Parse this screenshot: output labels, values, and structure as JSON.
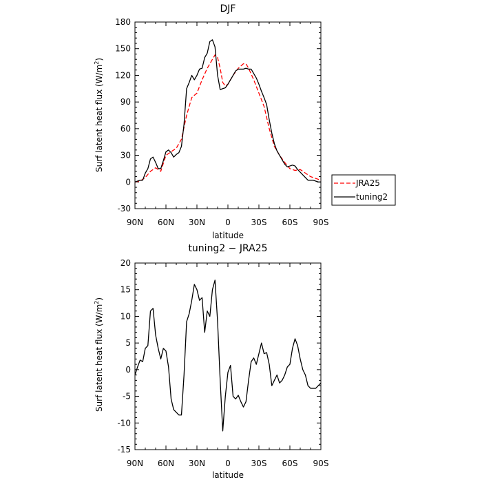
{
  "chart_data": [
    {
      "type": "line",
      "title": "DJF",
      "xlabel": "latitude",
      "ylabel": "Surf latent heat flux (W/m²)",
      "xlim": [
        90,
        -90
      ],
      "ylim": [
        -30,
        180
      ],
      "yticks": [
        -30,
        0,
        30,
        60,
        90,
        120,
        150,
        180
      ],
      "xticks": [
        90,
        60,
        30,
        0,
        -30,
        -60,
        -90
      ],
      "xtick_labels": [
        "90N",
        "60N",
        "30N",
        "0",
        "30S",
        "60S",
        "90S"
      ],
      "legend_position": "right",
      "series": [
        {
          "name": "JRA25",
          "color": "#ff0000",
          "dash": "dashed",
          "x": [
            90,
            85,
            80,
            75,
            70,
            65,
            60,
            55,
            50,
            45,
            40,
            35,
            30,
            25,
            20,
            15,
            12.5,
            10,
            7.5,
            5,
            2.5,
            0,
            -5,
            -10,
            -15,
            -17.5,
            -20,
            -25,
            -30,
            -35,
            -40,
            -45,
            -50,
            -55,
            -60,
            -65,
            -70,
            -75,
            -80,
            -85,
            -90
          ],
          "y": [
            0,
            1,
            5,
            12,
            16,
            12,
            30,
            34,
            38,
            48,
            75,
            95,
            100,
            115,
            128,
            138,
            143,
            140,
            128,
            112,
            108,
            110,
            120,
            128,
            133,
            133,
            128,
            115,
            100,
            85,
            60,
            40,
            30,
            22,
            15,
            13,
            14,
            10,
            6,
            4,
            2
          ]
        },
        {
          "name": "tuning2",
          "color": "#000000",
          "dash": "solid",
          "x": [
            90,
            87.5,
            85,
            82.5,
            80,
            77.5,
            75,
            72.5,
            70,
            67.5,
            65,
            62.5,
            60,
            57.5,
            55,
            52.5,
            50,
            47.5,
            45,
            42.5,
            40,
            37.5,
            35,
            32.5,
            30,
            27.5,
            25,
            22.5,
            20,
            17.5,
            15,
            12.5,
            10,
            7.5,
            5,
            2.5,
            0,
            -2.5,
            -5,
            -7.5,
            -10,
            -12.5,
            -15,
            -17.5,
            -20,
            -22.5,
            -25,
            -27.5,
            -30,
            -32.5,
            -35,
            -37.5,
            -40,
            -42.5,
            -45,
            -47.5,
            -50,
            -52.5,
            -55,
            -57.5,
            -60,
            -62.5,
            -65,
            -67.5,
            -70,
            -72.5,
            -75,
            -77.5,
            -80,
            -82.5,
            -85,
            -87.5,
            -90
          ],
          "y": [
            0,
            1,
            2,
            2,
            10,
            15,
            26,
            28,
            22,
            15,
            15,
            24,
            34,
            36,
            33,
            28,
            31,
            33,
            40,
            65,
            105,
            112,
            120,
            115,
            120,
            127,
            128,
            140,
            145,
            158,
            160,
            152,
            120,
            104,
            105,
            106,
            110,
            115,
            120,
            125,
            127,
            127,
            127,
            128,
            127,
            127,
            122,
            117,
            110,
            102,
            95,
            87,
            70,
            55,
            43,
            35,
            30,
            25,
            20,
            17,
            18,
            19,
            18,
            14,
            11,
            8,
            5,
            2,
            2,
            2,
            1,
            0,
            0
          ]
        }
      ]
    },
    {
      "type": "line",
      "title": "tuning2 − JRA25",
      "xlabel": "latitude",
      "ylabel": "Surf latent heat flux (W/m²)",
      "xlim": [
        90,
        -90
      ],
      "ylim": [
        -15,
        20
      ],
      "yticks": [
        -15,
        -10,
        -5,
        0,
        5,
        10,
        15,
        20
      ],
      "xticks": [
        90,
        60,
        30,
        0,
        -30,
        -60,
        -90
      ],
      "xtick_labels": [
        "90N",
        "60N",
        "30N",
        "0",
        "30S",
        "60S",
        "90S"
      ],
      "series": [
        {
          "name": "",
          "color": "#000000",
          "dash": "solid",
          "x": [
            90,
            87.5,
            85,
            82.5,
            80,
            77.5,
            75,
            72.5,
            70,
            67.5,
            65,
            62.5,
            60,
            57.5,
            55,
            52.5,
            50,
            47.5,
            45,
            42.5,
            40,
            37.5,
            35,
            32.5,
            30,
            27.5,
            25,
            22.5,
            20,
            17.5,
            15,
            12.5,
            10,
            7.5,
            5,
            2.5,
            0,
            -2.5,
            -5,
            -7.5,
            -10,
            -12.5,
            -15,
            -17.5,
            -20,
            -22.5,
            -25,
            -27.5,
            -30,
            -32.5,
            -35,
            -37.5,
            -40,
            -42.5,
            -45,
            -47.5,
            -50,
            -52.5,
            -55,
            -57.5,
            -60,
            -62.5,
            -65,
            -67.5,
            -70,
            -72.5,
            -75,
            -77.5,
            -80,
            -82.5,
            -85,
            -87.5,
            -90
          ],
          "y": [
            -1,
            0.5,
            1.8,
            1.5,
            4,
            4.5,
            11,
            11.5,
            6.5,
            4,
            2,
            4,
            3.5,
            0.5,
            -5.5,
            -7.5,
            -8,
            -8.5,
            -8.5,
            -1,
            9,
            10.5,
            13,
            16,
            15,
            13,
            13.5,
            7,
            11,
            10,
            15,
            16.8,
            9,
            -2,
            -11.5,
            -5,
            -0.5,
            0.8,
            -5,
            -5.5,
            -4.8,
            -6,
            -7,
            -6,
            -2,
            1.5,
            2.2,
            1,
            3,
            5,
            3,
            3.2,
            1,
            -3,
            -2,
            -1,
            -2.5,
            -2,
            -1,
            0.5,
            1,
            4,
            5.8,
            4.5,
            2,
            0,
            -1,
            -3,
            -3.5,
            -3.5,
            -3.5,
            -3,
            -2.5
          ]
        }
      ]
    }
  ]
}
